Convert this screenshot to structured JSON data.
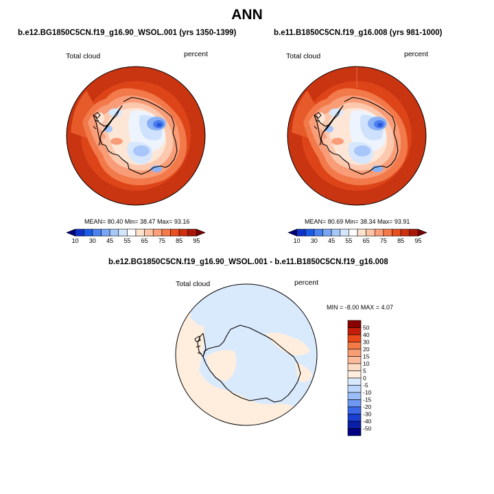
{
  "title": "ANN",
  "panels": [
    {
      "case": "b.e12.BG1850C5CN.f19_g16.90_WSOL.001 (yrs 1350-1399)",
      "variable": "Total cloud",
      "units": "percent",
      "stats": "MEAN=  80.40  Min=  38.47  Max=  93.16"
    },
    {
      "case": "b.e11.B1850C5CN.f19_g16.008 (yrs 981-1000)",
      "variable": "Total cloud",
      "units": "percent",
      "stats": "MEAN=  80.69  Min=  38.34  Max=  93.91"
    }
  ],
  "diff": {
    "title": "b.e12.BG1850C5CN.f19_g16.90_WSOL.001 - b.e11.B1850C5CN.f19_g16.008",
    "variable": "Total cloud",
    "units": "percent",
    "stats": "MIN =  -8.00 MAX =   4.07"
  },
  "colorbar_field": {
    "labels": [
      "10",
      "30",
      "45",
      "55",
      "65",
      "75",
      "85",
      "95"
    ],
    "colors": [
      "#00007a",
      "#0e32c8",
      "#1a5be6",
      "#4a82f0",
      "#7aa6f6",
      "#a8c8fa",
      "#d3e6fd",
      "#ffffff",
      "#fde2cc",
      "#fcc4a4",
      "#fba078",
      "#f57848",
      "#ea4f20",
      "#cf3010",
      "#a81808",
      "#7a0000"
    ]
  },
  "colorbar_diff": {
    "labels": [
      "50",
      "40",
      "30",
      "20",
      "15",
      "10",
      "5",
      "0",
      "-5",
      "-10",
      "-15",
      "-20",
      "-30",
      "-40",
      "-50"
    ],
    "colors": [
      "#8a0000",
      "#c41e0a",
      "#ea4a1a",
      "#f47a46",
      "#fa9c74",
      "#fcbc9c",
      "#fddcc6",
      "#ffeedd",
      "#daeafd",
      "#bcd6fc",
      "#9abefa",
      "#6e98f4",
      "#3a68e8",
      "#1a3ed0",
      "#0a1ea8",
      "#000080"
    ]
  }
}
